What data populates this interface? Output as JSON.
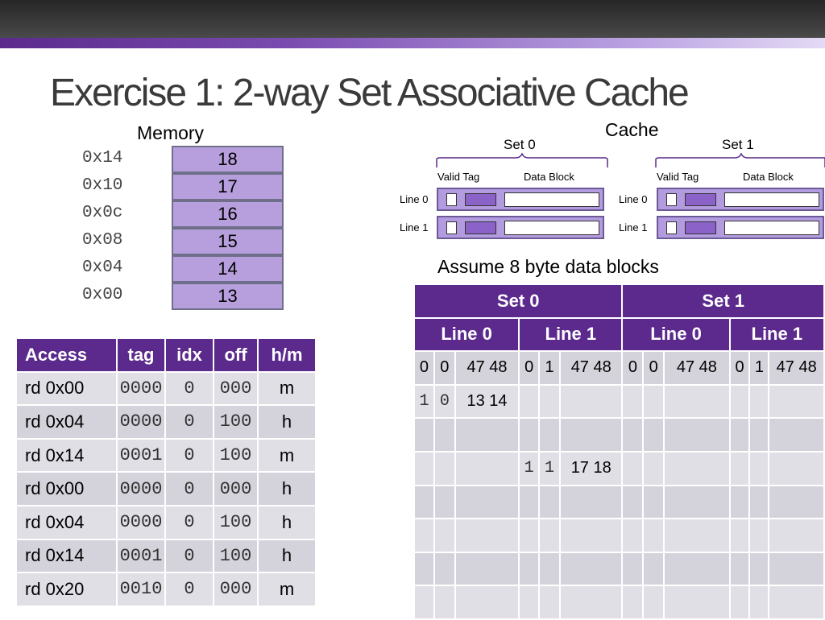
{
  "title": "Exercise 1: 2-way Set Associative Cache",
  "memory": {
    "label": "Memory",
    "rows": [
      {
        "addr": "0x14",
        "value": "18"
      },
      {
        "addr": "0x10",
        "value": "17"
      },
      {
        "addr": "0x0c",
        "value": "16"
      },
      {
        "addr": "0x08",
        "value": "15"
      },
      {
        "addr": "0x04",
        "value": "14"
      },
      {
        "addr": "0x00",
        "value": "13"
      }
    ]
  },
  "cache_diagram": {
    "label": "Cache",
    "set0": "Set 0",
    "set1": "Set 1",
    "valid_tag": "Valid Tag",
    "data_block": "Data Block",
    "line0": "Line 0",
    "line1": "Line 1"
  },
  "assume": "Assume 8 byte data blocks",
  "access_table": {
    "headers": [
      "Access",
      "tag",
      "idx",
      "off",
      "h/m"
    ],
    "rows": [
      {
        "access": "rd 0x00",
        "tag": "0000",
        "idx": "0",
        "off": "000",
        "hm": "m"
      },
      {
        "access": "rd 0x04",
        "tag": "0000",
        "idx": "0",
        "off": "100",
        "hm": "h"
      },
      {
        "access": "rd 0x14",
        "tag": "0001",
        "idx": "0",
        "off": "100",
        "hm": "m"
      },
      {
        "access": "rd 0x00",
        "tag": "0000",
        "idx": "0",
        "off": "000",
        "hm": "h"
      },
      {
        "access": "rd 0x04",
        "tag": "0000",
        "idx": "0",
        "off": "100",
        "hm": "h"
      },
      {
        "access": "rd 0x14",
        "tag": "0001",
        "idx": "0",
        "off": "100",
        "hm": "h"
      },
      {
        "access": "rd 0x20",
        "tag": "0010",
        "idx": "0",
        "off": "000",
        "hm": "m"
      }
    ]
  },
  "cache_table": {
    "set_headers": [
      "Set 0",
      "Set 1"
    ],
    "line_headers": [
      "Line 0",
      "Line 1",
      "Line 0",
      "Line 1"
    ],
    "init_row": [
      "0",
      "0",
      "47 48",
      "0",
      "1",
      "47 48",
      "0",
      "0",
      "47 48",
      "0",
      "1",
      "47 48"
    ],
    "r1": {
      "v": "1",
      "t": "0",
      "d": "13  14"
    },
    "r3": {
      "v": "1",
      "t": "1",
      "d": "17  18"
    }
  }
}
